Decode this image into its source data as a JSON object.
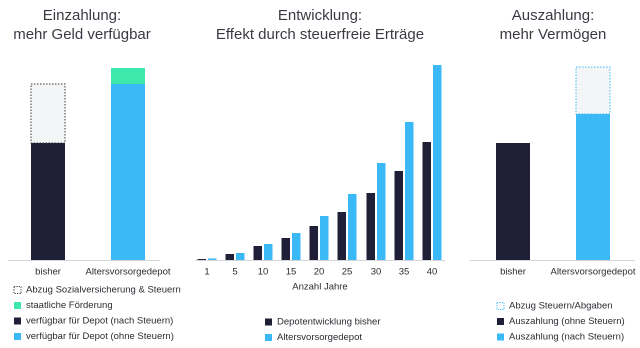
{
  "chart_data": [
    {
      "type": "stacked-bar",
      "title": [
        "Einzahlung:",
        "mehr Geld verfügbar"
      ],
      "categories": [
        "bisher",
        "Altersvorsorgedepot"
      ],
      "ylim": [
        0,
        200
      ],
      "series": [
        {
          "name": "Abzug Sozialversicherung & Steuern",
          "color": "#33363d",
          "pattern": "dotted",
          "values": [
            59,
            null
          ]
        },
        {
          "name": "staatliche Förderung",
          "color": "#3ee8ad",
          "values": [
            null,
            16
          ]
        },
        {
          "name": "verfügbar für Depot (nach Steuern)",
          "color": "#1f2038",
          "values": [
            117,
            null
          ]
        },
        {
          "name": "verfügbar für Depot (ohne Steuern)",
          "color": "#3bb9f6",
          "values": [
            null,
            176
          ]
        }
      ]
    },
    {
      "type": "grouped-bar",
      "title": [
        "Entwicklung:",
        "Effekt durch steuerfreie Erträge"
      ],
      "x_label": "Anzahl Jahre",
      "categories": [
        "1",
        "5",
        "10",
        "15",
        "20",
        "25",
        "30",
        "35",
        "40"
      ],
      "ylim": [
        0,
        200
      ],
      "series": [
        {
          "name": "Depotentwicklung bisher",
          "color": "#1f2038",
          "values": [
            1,
            6,
            14,
            22,
            34,
            48,
            67,
            89,
            118
          ]
        },
        {
          "name": "Altersvorsorgedepot",
          "color": "#3bb9f6",
          "values": [
            1.5,
            7,
            16,
            27,
            44,
            66,
            97,
            138,
            195
          ]
        }
      ]
    },
    {
      "type": "stacked-bar",
      "title": [
        "Auszahlung:",
        "mehr Vermögen"
      ],
      "categories": [
        "bisher",
        "Altersvorsorgedepot"
      ],
      "ylim": [
        0,
        200
      ],
      "series": [
        {
          "name": "Abzug Steuern/Abgaben",
          "color": "#3bb9f6",
          "pattern": "dotted",
          "values": [
            null,
            47
          ]
        },
        {
          "name": "Auszahlung (ohne Steuern)",
          "color": "#1f2038",
          "values": [
            117,
            null
          ]
        },
        {
          "name": "Auszahlung (nach Steuern)",
          "color": "#3bb9f6",
          "values": [
            null,
            146
          ]
        }
      ]
    }
  ]
}
